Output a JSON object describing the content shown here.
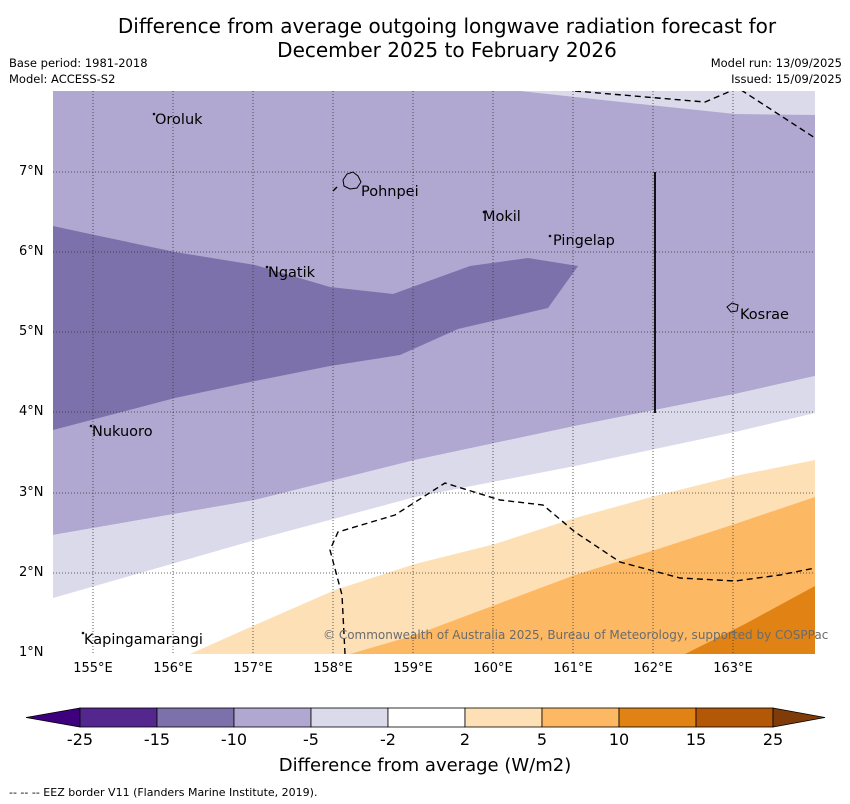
{
  "title": {
    "line1": "Difference from average outgoing longwave radiation forecast for",
    "line2": "December 2025 to February 2026"
  },
  "meta": {
    "base_period": "Base period: 1981-2018",
    "model": "Model: ACCESS-S2",
    "model_run": "Model run: 13/09/2025",
    "issued": "Issued: 15/09/2025"
  },
  "axes": {
    "latitudes": [
      "7°N",
      "6°N",
      "5°N",
      "4°N",
      "3°N",
      "2°N",
      "1°N"
    ],
    "longitudes": [
      "155°E",
      "156°E",
      "157°E",
      "158°E",
      "159°E",
      "160°E",
      "161°E",
      "162°E",
      "163°E"
    ]
  },
  "places": [
    {
      "name": "Oroluk"
    },
    {
      "name": "Pohnpei"
    },
    {
      "name": "Mokil"
    },
    {
      "name": "Pingelap"
    },
    {
      "name": "Ngatik"
    },
    {
      "name": "Kosrae"
    },
    {
      "name": "Nukuoro"
    },
    {
      "name": "Kapingamarangi"
    }
  ],
  "copyright": "© Commonwealth of Australia 2025, Bureau of Meteorology, supported by COSPPac",
  "colorbar": {
    "ticks": [
      "-25",
      "-15",
      "-10",
      "-5",
      "-2",
      "2",
      "5",
      "10",
      "15",
      "25"
    ],
    "colors": [
      "#3f007d",
      "#54278f",
      "#7d71ab",
      "#b0a8d0",
      "#dadaeb",
      "#ffffff",
      "#fee0b6",
      "#fdb863",
      "#e08214",
      "#b35806",
      "#7f3b08"
    ],
    "title": "Difference from average (W/m2)"
  },
  "footer": "--  --  -- EEZ border V11 (Flanders Marine Institute, 2019)."
}
